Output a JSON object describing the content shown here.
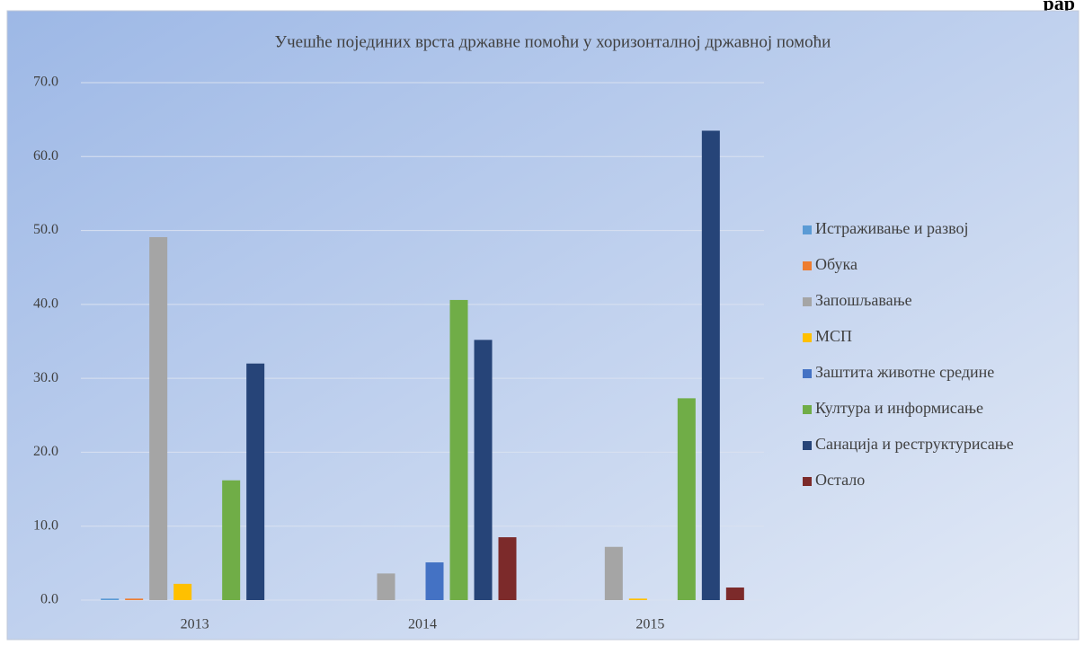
{
  "header_fragment": "рар",
  "chart_data": {
    "type": "bar",
    "title": "Учешће појединих врста државне помоћи у хоризонталној државној помоћи",
    "categories": [
      "2013",
      "2014",
      "2015"
    ],
    "series": [
      {
        "name": "Истраживање и развој",
        "color": "#5b9bd5",
        "values": [
          0.2,
          0,
          0
        ]
      },
      {
        "name": "Обука",
        "color": "#ed7d31",
        "values": [
          0.2,
          0,
          0
        ]
      },
      {
        "name": "Запошљавање",
        "color": "#a5a5a5",
        "values": [
          49.1,
          3.6,
          7.2
        ]
      },
      {
        "name": "МСП",
        "color": "#ffc000",
        "values": [
          2.2,
          0,
          0.2
        ]
      },
      {
        "name": "Заштита животне средине",
        "color": "#4472c4",
        "values": [
          0,
          5.1,
          0
        ]
      },
      {
        "name": "Култура и информисање",
        "color": "#70ad47",
        "values": [
          16.2,
          40.6,
          27.3
        ]
      },
      {
        "name": "Санација и реструктурисање",
        "color": "#264478",
        "values": [
          32.0,
          35.2,
          63.5
        ]
      },
      {
        "name": "Остало",
        "color": "#7c2a2a",
        "values": [
          0,
          8.5,
          1.7
        ]
      }
    ],
    "ylim": [
      0,
      70
    ],
    "yticks": [
      {
        "value": 0,
        "label": "0.0"
      },
      {
        "value": 10,
        "label": "10.0"
      },
      {
        "value": 20,
        "label": "20.0"
      },
      {
        "value": 30,
        "label": "30.0"
      },
      {
        "value": 40,
        "label": "40.0"
      },
      {
        "value": 50,
        "label": "50.0"
      },
      {
        "value": 60,
        "label": "60.0"
      },
      {
        "value": 70,
        "label": "70.0"
      }
    ],
    "grid": true,
    "legend": "right"
  }
}
